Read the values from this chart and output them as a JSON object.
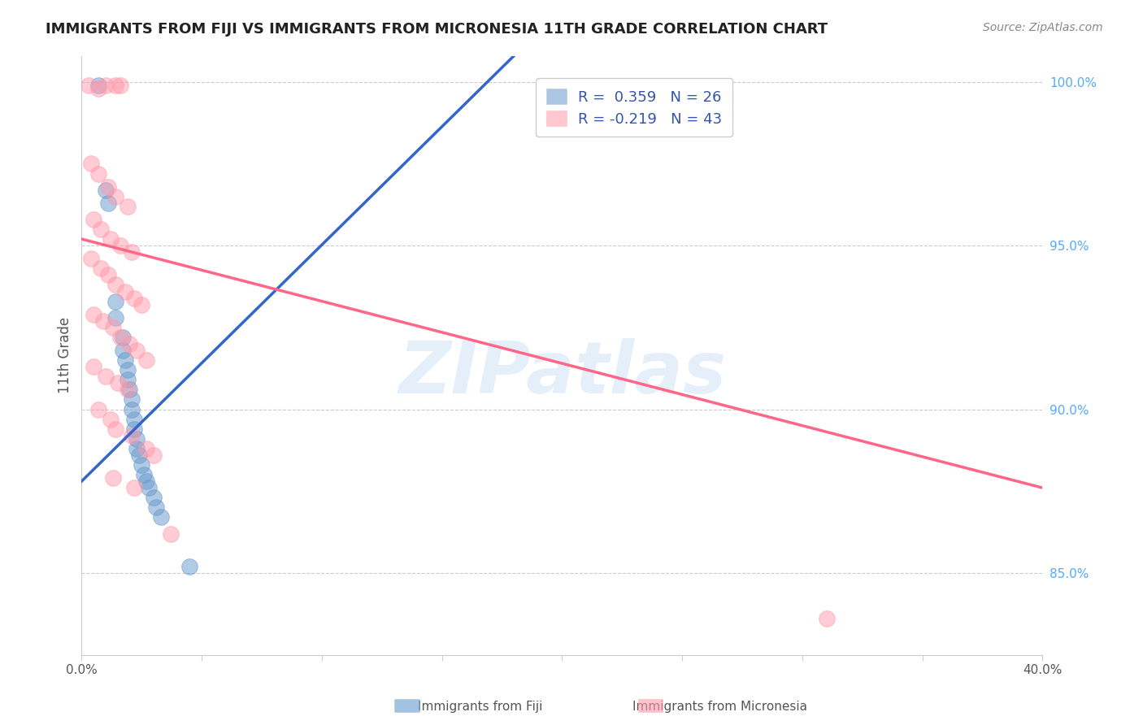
{
  "title": "IMMIGRANTS FROM FIJI VS IMMIGRANTS FROM MICRONESIA 11TH GRADE CORRELATION CHART",
  "source": "Source: ZipAtlas.com",
  "ylabel": "11th Grade",
  "x_label_fiji": "Immigrants from Fiji",
  "x_label_micro": "Immigrants from Micronesia",
  "xlim": [
    0.0,
    0.4
  ],
  "ylim": [
    0.825,
    1.008
  ],
  "xticks": [
    0.0,
    0.05,
    0.1,
    0.15,
    0.2,
    0.25,
    0.3,
    0.35,
    0.4
  ],
  "xtick_labels": [
    "0.0%",
    "",
    "",
    "",
    "",
    "",
    "",
    "",
    "40.0%"
  ],
  "ytick_vals": [
    0.85,
    0.9,
    0.95,
    1.0
  ],
  "ytick_labels": [
    "85.0%",
    "90.0%",
    "95.0%",
    "100.0%"
  ],
  "fiji_color": "#6699CC",
  "micro_color": "#FF99AA",
  "fiji_R": 0.359,
  "fiji_N": 26,
  "micro_R": -0.219,
  "micro_N": 43,
  "fiji_scatter": [
    [
      0.007,
      0.999
    ],
    [
      0.01,
      0.967
    ],
    [
      0.011,
      0.963
    ],
    [
      0.014,
      0.933
    ],
    [
      0.014,
      0.928
    ],
    [
      0.017,
      0.922
    ],
    [
      0.017,
      0.918
    ],
    [
      0.018,
      0.915
    ],
    [
      0.019,
      0.912
    ],
    [
      0.019,
      0.909
    ],
    [
      0.02,
      0.906
    ],
    [
      0.021,
      0.903
    ],
    [
      0.021,
      0.9
    ],
    [
      0.022,
      0.897
    ],
    [
      0.022,
      0.894
    ],
    [
      0.023,
      0.891
    ],
    [
      0.023,
      0.888
    ],
    [
      0.024,
      0.886
    ],
    [
      0.025,
      0.883
    ],
    [
      0.026,
      0.88
    ],
    [
      0.027,
      0.878
    ],
    [
      0.028,
      0.876
    ],
    [
      0.03,
      0.873
    ],
    [
      0.031,
      0.87
    ],
    [
      0.033,
      0.867
    ],
    [
      0.045,
      0.852
    ]
  ],
  "micro_scatter": [
    [
      0.003,
      0.999
    ],
    [
      0.007,
      0.998
    ],
    [
      0.01,
      0.999
    ],
    [
      0.014,
      0.999
    ],
    [
      0.016,
      0.999
    ],
    [
      0.004,
      0.975
    ],
    [
      0.007,
      0.972
    ],
    [
      0.011,
      0.968
    ],
    [
      0.014,
      0.965
    ],
    [
      0.019,
      0.962
    ],
    [
      0.005,
      0.958
    ],
    [
      0.008,
      0.955
    ],
    [
      0.012,
      0.952
    ],
    [
      0.016,
      0.95
    ],
    [
      0.021,
      0.948
    ],
    [
      0.004,
      0.946
    ],
    [
      0.008,
      0.943
    ],
    [
      0.011,
      0.941
    ],
    [
      0.014,
      0.938
    ],
    [
      0.018,
      0.936
    ],
    [
      0.022,
      0.934
    ],
    [
      0.025,
      0.932
    ],
    [
      0.005,
      0.929
    ],
    [
      0.009,
      0.927
    ],
    [
      0.013,
      0.925
    ],
    [
      0.016,
      0.922
    ],
    [
      0.02,
      0.92
    ],
    [
      0.023,
      0.918
    ],
    [
      0.027,
      0.915
    ],
    [
      0.005,
      0.913
    ],
    [
      0.01,
      0.91
    ],
    [
      0.015,
      0.908
    ],
    [
      0.019,
      0.906
    ],
    [
      0.007,
      0.9
    ],
    [
      0.012,
      0.897
    ],
    [
      0.014,
      0.894
    ],
    [
      0.021,
      0.892
    ],
    [
      0.027,
      0.888
    ],
    [
      0.03,
      0.886
    ],
    [
      0.013,
      0.879
    ],
    [
      0.022,
      0.876
    ],
    [
      0.037,
      0.862
    ],
    [
      0.31,
      0.836
    ]
  ],
  "fiji_line": {
    "x0": 0.0,
    "y0": 0.878,
    "x1": 0.18,
    "y1": 1.008
  },
  "micro_line": {
    "x0": 0.0,
    "y0": 0.952,
    "x1": 0.4,
    "y1": 0.876
  },
  "watermark": "ZIPatlas",
  "background_color": "#FFFFFF",
  "grid_color": "#CCCCCC"
}
